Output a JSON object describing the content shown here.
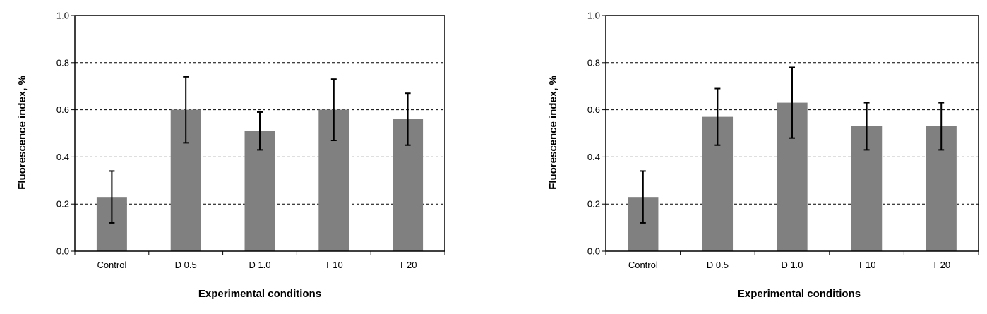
{
  "chart_data": [
    {
      "type": "bar",
      "title": "",
      "xlabel": "Experimental conditions",
      "ylabel": "Fluorescence index, %",
      "ylim": [
        0,
        1.0
      ],
      "yticks": [
        "0.0",
        "0.2",
        "0.4",
        "0.6",
        "0.8",
        "1.0"
      ],
      "grid": "horizontal dashed",
      "categories": [
        "Control",
        "D 0.5",
        "D 1.0",
        "T 10",
        "T 20"
      ],
      "values": [
        0.23,
        0.6,
        0.51,
        0.6,
        0.56
      ],
      "errors": [
        0.11,
        0.14,
        0.08,
        0.13,
        0.11
      ],
      "bar_color": "#808080"
    },
    {
      "type": "bar",
      "title": "",
      "xlabel": "Experimental conditions",
      "ylabel": "Fluorescence index, %",
      "ylim": [
        0,
        1.0
      ],
      "yticks": [
        "0.0",
        "0.2",
        "0.4",
        "0.6",
        "0.8",
        "1.0"
      ],
      "grid": "horizontal dashed",
      "categories": [
        "Control",
        "D 0.5",
        "D 1.0",
        "T 10",
        "T 20"
      ],
      "values": [
        0.23,
        0.57,
        0.63,
        0.53,
        0.53
      ],
      "errors": [
        0.11,
        0.12,
        0.15,
        0.1,
        0.1
      ],
      "bar_color": "#808080"
    }
  ]
}
